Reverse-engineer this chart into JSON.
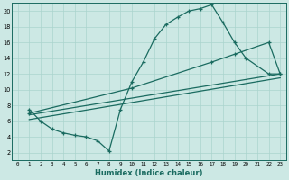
{
  "xlabel": "Humidex (Indice chaleur)",
  "bg_color": "#cce8e4",
  "line_color": "#1a6b60",
  "grid_color": "#aad4ce",
  "xlim": [
    -0.5,
    23.5
  ],
  "ylim": [
    1,
    21
  ],
  "xticks": [
    0,
    1,
    2,
    3,
    4,
    5,
    6,
    7,
    8,
    9,
    10,
    11,
    12,
    13,
    14,
    15,
    16,
    17,
    18,
    19,
    20,
    21,
    22,
    23
  ],
  "yticks": [
    2,
    4,
    6,
    8,
    10,
    12,
    14,
    16,
    18,
    20
  ],
  "line1_x": [
    1,
    2,
    3,
    4,
    5,
    6,
    7,
    8,
    9,
    10,
    11,
    12,
    13,
    14,
    15,
    16,
    17,
    18,
    19,
    20,
    22,
    23
  ],
  "line1_y": [
    7.5,
    6.0,
    5.0,
    4.5,
    4.2,
    4.0,
    3.5,
    2.2,
    7.5,
    11.0,
    13.5,
    16.5,
    18.3,
    19.2,
    20.0,
    20.3,
    20.8,
    18.5,
    16.0,
    14.0,
    12.0,
    12.0
  ],
  "line2_x": [
    1,
    10,
    17,
    19,
    22,
    23
  ],
  "line2_y": [
    7.0,
    10.2,
    13.5,
    14.5,
    16.0,
    12.0
  ],
  "line3_x": [
    1,
    23
  ],
  "line3_y": [
    6.2,
    11.5
  ],
  "line4_x": [
    1,
    23
  ],
  "line4_y": [
    6.8,
    12.0
  ]
}
